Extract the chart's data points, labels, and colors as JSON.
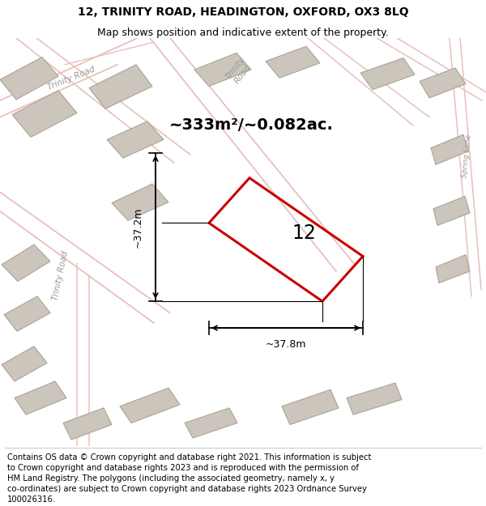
{
  "title_line1": "12, TRINITY ROAD, HEADINGTON, OXFORD, OX3 8LQ",
  "title_line2": "Map shows position and indicative extent of the property.",
  "area_label": "~333m²/~0.082ac.",
  "property_number": "12",
  "dim_vertical": "~37.2m",
  "dim_horizontal": "~37.8m",
  "footer_lines": [
    "Contains OS data © Crown copyright and database right 2021. This information is subject",
    "to Crown copyright and database rights 2023 and is reproduced with the permission of",
    "HM Land Registry. The polygons (including the associated geometry, namely x, y",
    "co-ordinates) are subject to Crown copyright and database rights 2023 Ordnance Survey",
    "100026316."
  ],
  "map_bg_color": "#f5f0eb",
  "building_color_fill": "#ccc5bb",
  "building_color_edge": "#aaa398",
  "road_color": "#e8c0bc",
  "property_edge": "#cc0000",
  "title_fontsize": 10,
  "subtitle_fontsize": 9,
  "footer_fontsize": 7.2,
  "road_label_color": "#999999",
  "road_label_fontsize": 7.5
}
